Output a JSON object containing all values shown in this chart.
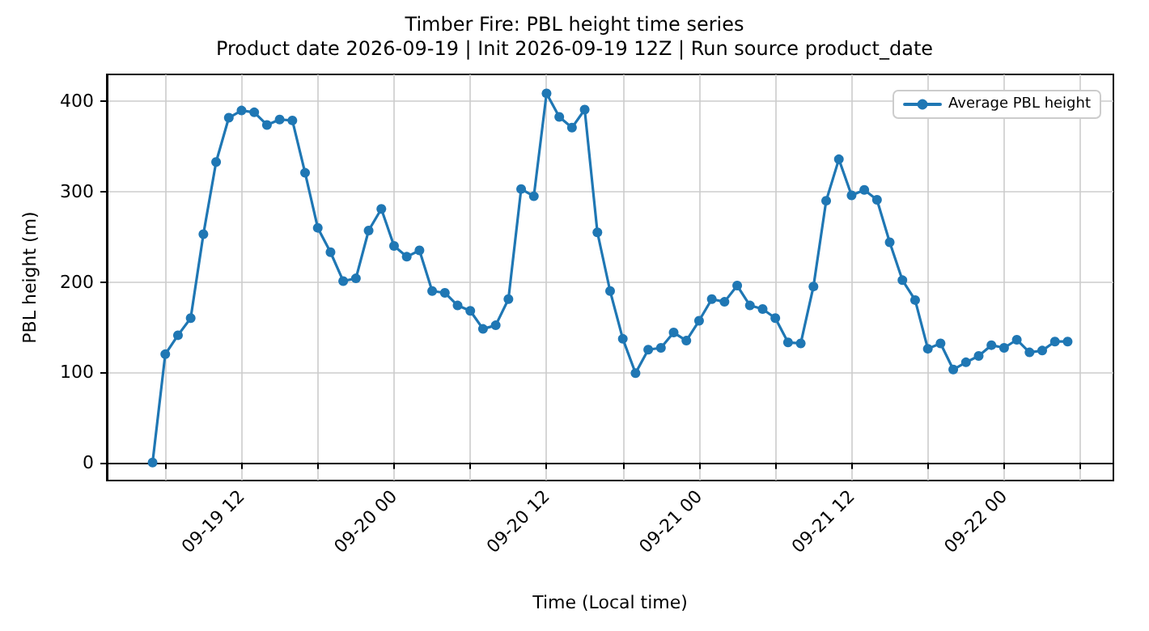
{
  "chart_data": {
    "type": "line",
    "title": "Timber Fire: PBL height time series",
    "subtitle": "Product date 2026-09-19 | Init 2026-09-19 12Z | Run source product_date",
    "xlabel": "Time (Local time)",
    "ylabel": "PBL height (m)",
    "x": [
      "2026-09-19T05:00",
      "2026-09-19T06:00",
      "2026-09-19T07:00",
      "2026-09-19T08:00",
      "2026-09-19T09:00",
      "2026-09-19T10:00",
      "2026-09-19T11:00",
      "2026-09-19T12:00",
      "2026-09-19T13:00",
      "2026-09-19T14:00",
      "2026-09-19T15:00",
      "2026-09-19T16:00",
      "2026-09-19T17:00",
      "2026-09-19T18:00",
      "2026-09-19T19:00",
      "2026-09-19T20:00",
      "2026-09-19T21:00",
      "2026-09-19T22:00",
      "2026-09-19T23:00",
      "2026-09-20T00:00",
      "2026-09-20T01:00",
      "2026-09-20T02:00",
      "2026-09-20T03:00",
      "2026-09-20T04:00",
      "2026-09-20T05:00",
      "2026-09-20T06:00",
      "2026-09-20T07:00",
      "2026-09-20T08:00",
      "2026-09-20T09:00",
      "2026-09-20T10:00",
      "2026-09-20T11:00",
      "2026-09-20T12:00",
      "2026-09-20T13:00",
      "2026-09-20T14:00",
      "2026-09-20T15:00",
      "2026-09-20T16:00",
      "2026-09-20T17:00",
      "2026-09-20T18:00",
      "2026-09-20T19:00",
      "2026-09-20T20:00",
      "2026-09-20T21:00",
      "2026-09-20T22:00",
      "2026-09-20T23:00",
      "2026-09-21T00:00",
      "2026-09-21T01:00",
      "2026-09-21T02:00",
      "2026-09-21T03:00",
      "2026-09-21T04:00",
      "2026-09-21T05:00",
      "2026-09-21T06:00",
      "2026-09-21T07:00",
      "2026-09-21T08:00",
      "2026-09-21T09:00",
      "2026-09-21T10:00",
      "2026-09-21T11:00",
      "2026-09-21T12:00",
      "2026-09-21T13:00",
      "2026-09-21T14:00",
      "2026-09-21T15:00",
      "2026-09-21T16:00",
      "2026-09-21T17:00",
      "2026-09-21T18:00",
      "2026-09-21T19:00",
      "2026-09-21T20:00",
      "2026-09-21T21:00",
      "2026-09-21T22:00",
      "2026-09-21T23:00",
      "2026-09-22T00:00",
      "2026-09-22T01:00",
      "2026-09-22T02:00",
      "2026-09-22T03:00",
      "2026-09-22T04:00",
      "2026-09-22T05:00"
    ],
    "series": [
      {
        "name": "Average PBL height",
        "color": "#1f77b4",
        "values": [
          0,
          120,
          141,
          160,
          253,
          333,
          382,
          390,
          388,
          374,
          380,
          379,
          321,
          260,
          233,
          201,
          204,
          257,
          281,
          240,
          228,
          235,
          190,
          188,
          174,
          168,
          148,
          152,
          181,
          303,
          295,
          409,
          383,
          371,
          391,
          255,
          190,
          137,
          99,
          125,
          127,
          144,
          135,
          157,
          181,
          178,
          196,
          174,
          170,
          160,
          133,
          132,
          195,
          290,
          336,
          296,
          302,
          291,
          244,
          202,
          180,
          126,
          132,
          103,
          111,
          118,
          130,
          127,
          136,
          122,
          124,
          134,
          134
        ]
      }
    ],
    "xlim": [
      "2026-09-19T01:24",
      "2026-09-22T08:36"
    ],
    "xticks": [
      {
        "value": "2026-09-19T06:00",
        "label": null
      },
      {
        "value": "2026-09-19T12:00",
        "label": "09-19 12"
      },
      {
        "value": "2026-09-19T18:00",
        "label": null
      },
      {
        "value": "2026-09-20T00:00",
        "label": "09-20 00"
      },
      {
        "value": "2026-09-20T06:00",
        "label": null
      },
      {
        "value": "2026-09-20T12:00",
        "label": "09-20 12"
      },
      {
        "value": "2026-09-20T18:00",
        "label": null
      },
      {
        "value": "2026-09-21T00:00",
        "label": "09-21 00"
      },
      {
        "value": "2026-09-21T06:00",
        "label": null
      },
      {
        "value": "2026-09-21T12:00",
        "label": "09-21 12"
      },
      {
        "value": "2026-09-21T18:00",
        "label": null
      },
      {
        "value": "2026-09-22T00:00",
        "label": "09-22 00"
      },
      {
        "value": "2026-09-22T06:00",
        "label": null
      }
    ],
    "ylim": [
      -20,
      430
    ],
    "yticks": [
      0,
      100,
      200,
      300,
      400
    ],
    "grid": true,
    "legend": "top right",
    "marker": "circle",
    "line_style": "solid"
  }
}
